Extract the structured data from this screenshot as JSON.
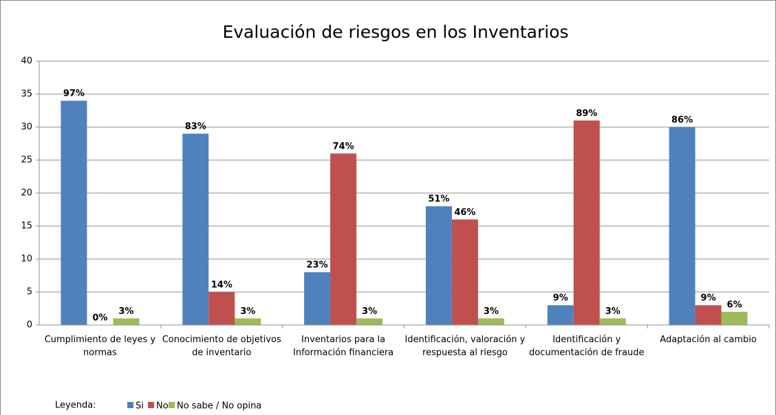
{
  "chart_data": {
    "type": "bar",
    "title": "Evaluación de riesgos en los Inventarios",
    "categories": [
      "Cumplimiento de leyes y normas",
      "Conocimiento de objetivos de inventario",
      "Inventarios para la Información financiera",
      "Identificación, valoración y respuesta al riesgo",
      "Identificación y documentación de fraude",
      "Adaptación al cambio"
    ],
    "series": [
      {
        "name": "Si",
        "color": "#4f81bd",
        "values": [
          34,
          29,
          8,
          18,
          3,
          30
        ],
        "value_labels": [
          "97%",
          "83%",
          "23%",
          "51%",
          "9%",
          "86%"
        ]
      },
      {
        "name": "No",
        "color": "#c0504d",
        "values": [
          0,
          5,
          26,
          16,
          31,
          3
        ],
        "value_labels": [
          "0%",
          "14%",
          "74%",
          "46%",
          "89%",
          "9%"
        ]
      },
      {
        "name": "No sabe / No opina",
        "color": "#9bbb59",
        "values": [
          1,
          1,
          1,
          1,
          1,
          2
        ],
        "value_labels": [
          "3%",
          "3%",
          "3%",
          "3%",
          "3%",
          "6%"
        ]
      }
    ],
    "legend_title": "Leyenda:",
    "legend": "bottom-left",
    "ylim": [
      0,
      40
    ],
    "yticks": [
      0,
      5,
      10,
      15,
      20,
      25,
      30,
      35,
      40
    ],
    "grid": true
  }
}
